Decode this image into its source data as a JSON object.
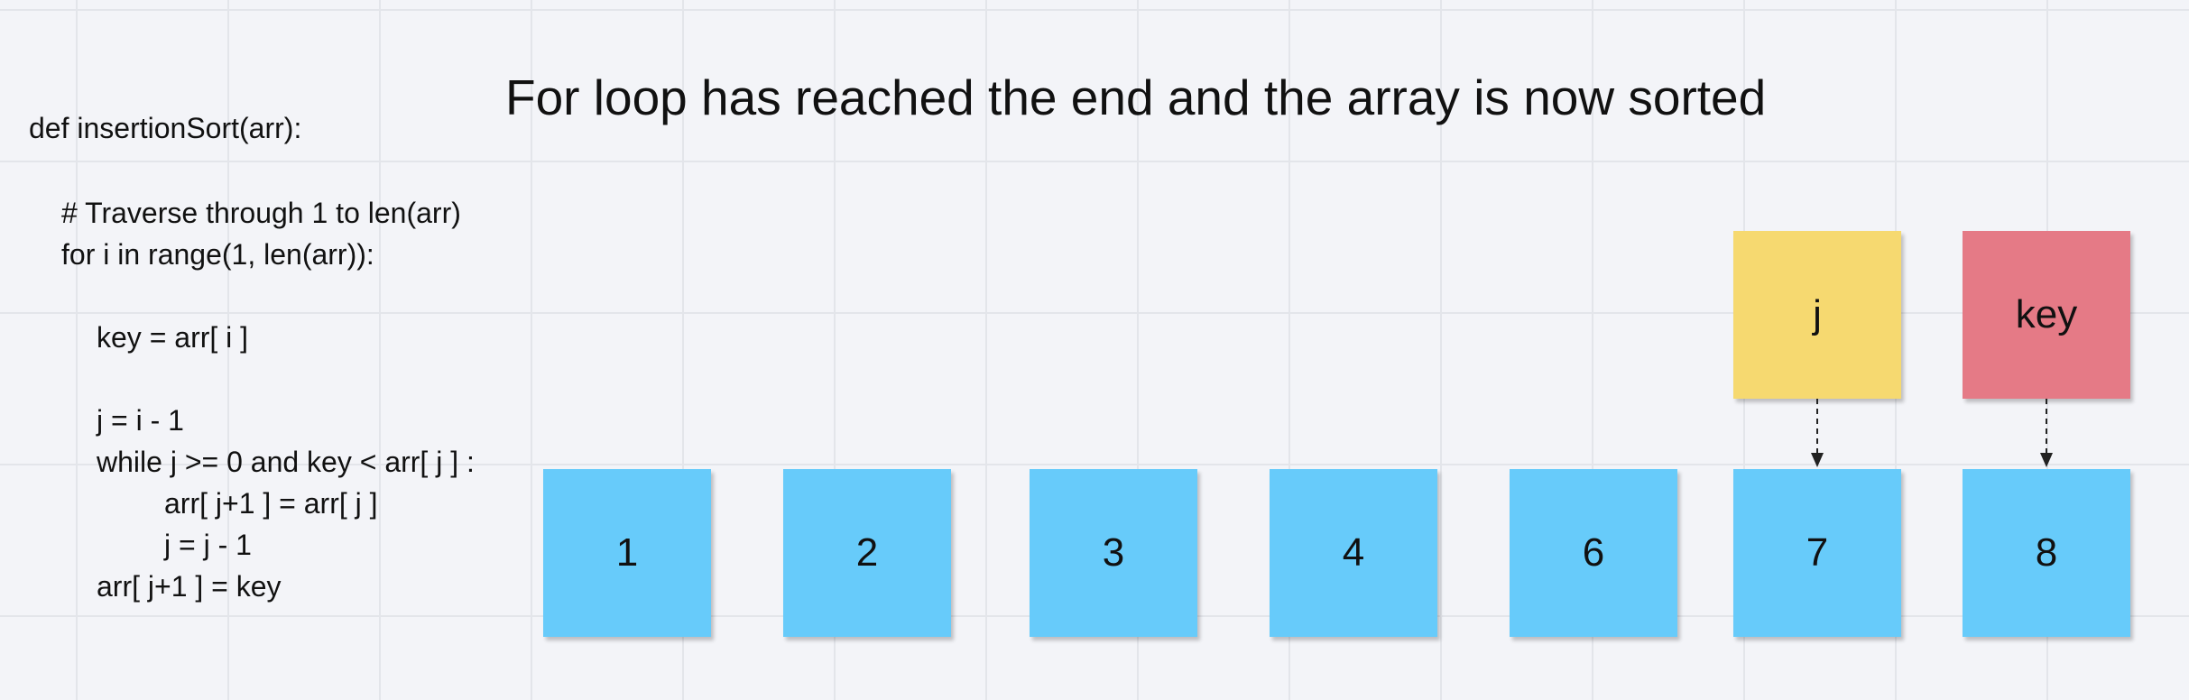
{
  "title": "For loop has reached the end and the array is now sorted",
  "code": {
    "lines": [
      "def insertionSort(arr):",
      "# Traverse through 1 to len(arr)",
      "for i in range(1, len(arr)):",
      "key = arr[ i ]",
      "j = i - 1",
      "while j >= 0 and key < arr[ j ] :",
      "arr[ j+1 ] = arr[ j ]",
      "j = j - 1",
      "arr[ j+1 ] = key"
    ]
  },
  "array": {
    "values": [
      "1",
      "2",
      "3",
      "4",
      "6",
      "7",
      "8"
    ],
    "color": "#67cbfa"
  },
  "pointers": [
    {
      "label": "j",
      "color": "#f6d970",
      "points_to_index": 5
    },
    {
      "label": "key",
      "color": "#e57a86",
      "points_to_index": 6
    }
  ]
}
